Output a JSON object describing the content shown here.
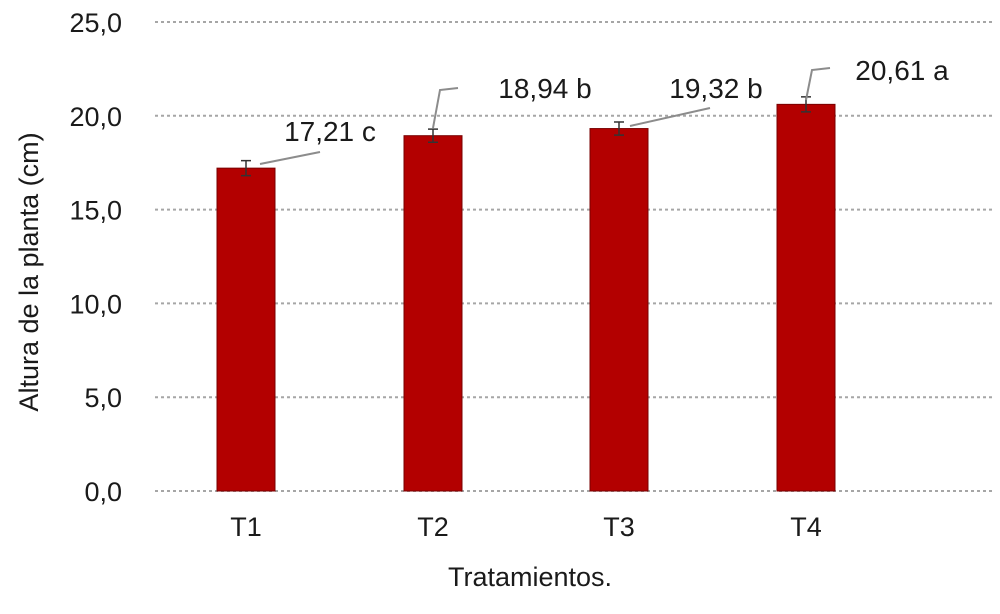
{
  "chart_data": {
    "type": "bar",
    "categories": [
      "T1",
      "T2",
      "T3",
      "T4"
    ],
    "values": [
      17.21,
      18.94,
      19.32,
      20.61
    ],
    "error": [
      0.4,
      0.35,
      0.35,
      0.4
    ],
    "data_labels": [
      "17,21 c",
      "18,94 b",
      "19,32 b",
      "20,61 a"
    ],
    "y_tick_labels": [
      "0,0",
      "5,0",
      "10,0",
      "15,0",
      "20,0",
      "25,0"
    ],
    "y_ticks": [
      0,
      5,
      10,
      15,
      20,
      25
    ],
    "ylim": [
      0,
      25
    ],
    "xlabel": "Tratamientos.",
    "ylabel": "Altura de la planta (cm)",
    "title": "",
    "grid": true,
    "legend": "none",
    "colors": {
      "bar": "#b30000",
      "bar_edge": "#7a0000",
      "grid": "#a6a6a6",
      "error_bar": "#333333",
      "leader": "#8c8c8c"
    }
  }
}
